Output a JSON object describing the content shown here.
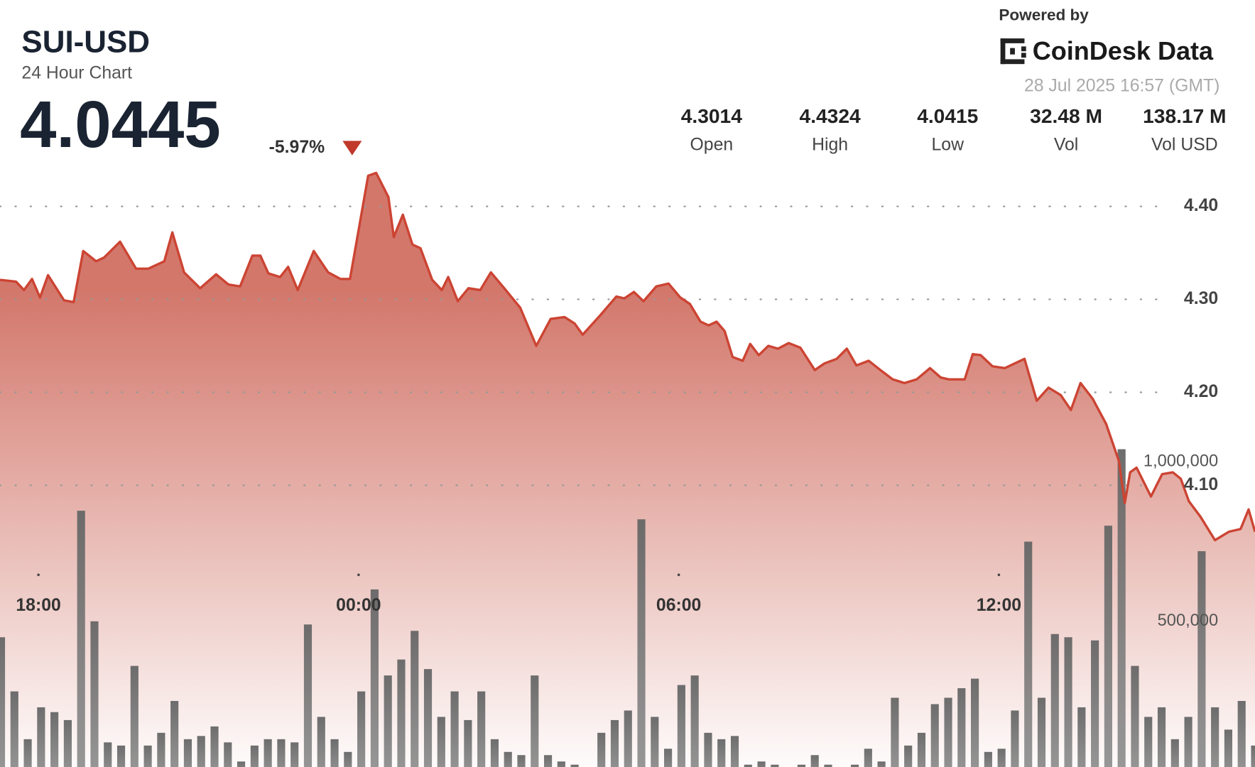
{
  "header": {
    "symbol": "SUI-USD",
    "subtitle": "24 Hour Chart",
    "price": "4.0445",
    "change": "-5.97%",
    "powered_by": "Powered by",
    "brand": "CoinDesk Data",
    "timestamp": "28 Jul 2025 16:57 (GMT)",
    "stats": [
      {
        "value": "4.3014",
        "label": "Open"
      },
      {
        "value": "4.4324",
        "label": "High"
      },
      {
        "value": "4.0415",
        "label": "Low"
      },
      {
        "value": "32.48 M",
        "label": "Vol"
      },
      {
        "value": "138.17 M",
        "label": "Vol USD"
      }
    ]
  },
  "chart_data": [
    {
      "type": "line",
      "color": "#cc4433",
      "grid": true,
      "xlim": [
        17.28,
        40.8
      ],
      "ylim": [
        3.797,
        4.622
      ],
      "xticks": [
        {
          "value": 18,
          "label": "18:00"
        },
        {
          "value": 24,
          "label": "00:00"
        },
        {
          "value": 30,
          "label": "06:00"
        },
        {
          "value": 36,
          "label": "12:00"
        }
      ],
      "yticks": [
        {
          "value": 4.1,
          "label": "4.10"
        },
        {
          "value": 4.2,
          "label": "4.20"
        },
        {
          "value": 4.3,
          "label": "4.30"
        },
        {
          "value": 4.4,
          "label": "4.40"
        }
      ],
      "x": [
        17.28,
        17.58,
        17.73,
        17.88,
        18.03,
        18.18,
        18.48,
        18.66,
        18.84,
        19.08,
        19.23,
        19.53,
        19.83,
        20.06,
        20.36,
        20.51,
        20.73,
        21.03,
        21.33,
        21.56,
        21.78,
        22.01,
        22.16,
        22.31,
        22.53,
        22.68,
        22.86,
        23.16,
        23.43,
        23.66,
        23.84,
        24.18,
        24.33,
        24.56,
        24.66,
        24.83,
        25.01,
        25.16,
        25.38,
        25.56,
        25.68,
        25.86,
        26.06,
        26.28,
        26.48,
        26.73,
        27.03,
        27.33,
        27.6,
        27.86,
        28.05,
        28.2,
        28.53,
        28.83,
        28.98,
        29.16,
        29.34,
        29.58,
        29.81,
        30.03,
        30.21,
        30.41,
        30.56,
        30.71,
        30.86,
        31.01,
        31.2,
        31.34,
        31.5,
        31.68,
        31.86,
        32.06,
        32.28,
        32.55,
        32.73,
        32.96,
        33.15,
        33.33,
        33.56,
        33.78,
        34.01,
        34.23,
        34.46,
        34.71,
        34.91,
        35.06,
        35.36,
        35.51,
        35.66,
        35.88,
        36.11,
        36.48,
        36.71,
        36.93,
        37.16,
        37.35,
        37.53,
        37.76,
        38.01,
        38.25,
        38.36,
        38.46,
        38.58,
        38.85,
        39.06,
        39.26,
        39.41,
        39.56,
        39.78,
        40.05,
        40.31,
        40.53,
        40.68,
        40.8
      ],
      "values": [
        4.321,
        4.319,
        4.31,
        4.322,
        4.302,
        4.326,
        4.299,
        4.297,
        4.352,
        4.341,
        4.345,
        4.362,
        4.333,
        4.333,
        4.341,
        4.372,
        4.329,
        4.312,
        4.327,
        4.316,
        4.314,
        4.347,
        4.347,
        4.328,
        4.324,
        4.335,
        4.31,
        4.352,
        4.329,
        4.322,
        4.322,
        4.433,
        4.436,
        4.41,
        4.367,
        4.391,
        4.359,
        4.355,
        4.321,
        4.31,
        4.324,
        4.298,
        4.312,
        4.31,
        4.329,
        4.312,
        4.291,
        4.25,
        4.279,
        4.281,
        4.274,
        4.262,
        4.283,
        4.303,
        4.301,
        4.308,
        4.298,
        4.314,
        4.317,
        4.302,
        4.295,
        4.276,
        4.272,
        4.276,
        4.266,
        4.238,
        4.234,
        4.252,
        4.24,
        4.25,
        4.247,
        4.253,
        4.248,
        4.224,
        4.231,
        4.236,
        4.247,
        4.229,
        4.234,
        4.224,
        4.214,
        4.21,
        4.214,
        4.226,
        4.216,
        4.214,
        4.214,
        4.241,
        4.24,
        4.228,
        4.226,
        4.236,
        4.191,
        4.205,
        4.197,
        4.181,
        4.21,
        4.193,
        4.166,
        4.126,
        4.081,
        4.114,
        4.119,
        4.088,
        4.112,
        4.114,
        4.107,
        4.083,
        4.066,
        4.041,
        4.05,
        4.053,
        4.074,
        4.05
      ]
    },
    {
      "type": "bar",
      "color": "#6e6e6e",
      "xlim": [
        17.28,
        40.8
      ],
      "ylim": [
        0,
        2449749
      ],
      "yticks": [
        {
          "value": 500000,
          "label": "500,000"
        },
        {
          "value": 1000000,
          "label": "1,000,000"
        }
      ],
      "x": [
        17.3,
        17.55,
        17.8,
        18.05,
        18.3,
        18.55,
        18.8,
        19.05,
        19.3,
        19.55,
        19.8,
        20.05,
        20.3,
        20.55,
        20.8,
        21.05,
        21.3,
        21.55,
        21.8,
        22.05,
        22.3,
        22.55,
        22.8,
        23.05,
        23.3,
        23.55,
        23.8,
        24.05,
        24.3,
        24.55,
        24.8,
        25.05,
        25.3,
        25.55,
        25.8,
        26.05,
        26.3,
        26.55,
        26.8,
        27.05,
        27.3,
        27.55,
        27.8,
        28.05,
        28.3,
        28.55,
        28.8,
        29.05,
        29.3,
        29.55,
        29.8,
        30.05,
        30.3,
        30.55,
        30.8,
        31.05,
        31.3,
        31.55,
        31.8,
        32.05,
        32.3,
        32.55,
        32.8,
        33.05,
        33.3,
        33.55,
        33.8,
        34.05,
        34.3,
        34.55,
        34.8,
        35.05,
        35.3,
        35.55,
        35.8,
        36.05,
        36.3,
        36.55,
        36.8,
        37.05,
        37.3,
        37.55,
        37.8,
        38.05,
        38.3,
        38.55,
        38.8,
        39.05,
        39.3,
        39.55,
        39.8,
        40.05,
        40.3,
        40.55,
        40.8
      ],
      "values": [
        450000,
        280000,
        130000,
        230000,
        215000,
        190000,
        847000,
        500000,
        120000,
        110000,
        360000,
        110000,
        150000,
        250000,
        130000,
        140000,
        170000,
        120000,
        60000,
        110000,
        130000,
        130000,
        120000,
        490000,
        200000,
        130000,
        90000,
        280000,
        600000,
        330000,
        380000,
        470000,
        350000,
        200000,
        280000,
        190000,
        280000,
        130000,
        90000,
        80000,
        330000,
        80000,
        60000,
        50000,
        40000,
        150000,
        190000,
        220000,
        820000,
        200000,
        100000,
        300000,
        330000,
        150000,
        130000,
        140000,
        50000,
        60000,
        50000,
        40000,
        50000,
        80000,
        50000,
        40000,
        50000,
        100000,
        60000,
        260000,
        110000,
        150000,
        240000,
        260000,
        290000,
        320000,
        90000,
        100000,
        220000,
        750000,
        260000,
        460000,
        450000,
        230000,
        440000,
        800000,
        1040000,
        360000,
        200000,
        230000,
        130000,
        200000,
        720000,
        230000,
        160000,
        250000,
        110000
      ]
    }
  ]
}
